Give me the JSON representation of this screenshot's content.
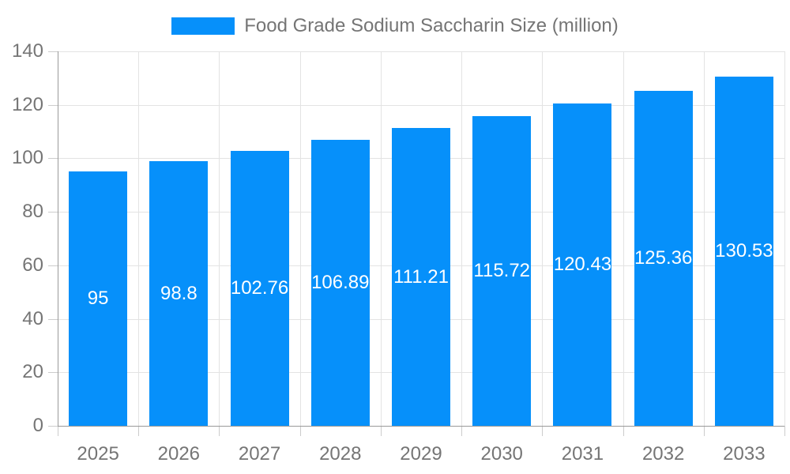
{
  "chart_data": {
    "type": "bar",
    "title": "Food Grade Sodium Saccharin Size (million)",
    "legend": [
      "Food Grade Sodium Saccharin Size (million)"
    ],
    "legend_position": "top-center",
    "categories": [
      "2025",
      "2026",
      "2027",
      "2028",
      "2029",
      "2030",
      "2031",
      "2032",
      "2033"
    ],
    "values": [
      95,
      98.8,
      102.76,
      106.89,
      111.21,
      115.72,
      120.43,
      125.36,
      130.53
    ],
    "xlabel": "",
    "ylabel": "",
    "ylim": [
      0,
      140
    ],
    "yticks": [
      0,
      20,
      40,
      60,
      80,
      100,
      120,
      140
    ],
    "grid": true,
    "value_labels": "inside-middle"
  },
  "colors": {
    "bar": "#0690fa",
    "axis_line": "#9a9a9a",
    "tick": "#cccccc",
    "gridline": "#e3e3e3",
    "text": "#757575",
    "value_label_text": "#ffffff",
    "background": "#ffffff"
  }
}
